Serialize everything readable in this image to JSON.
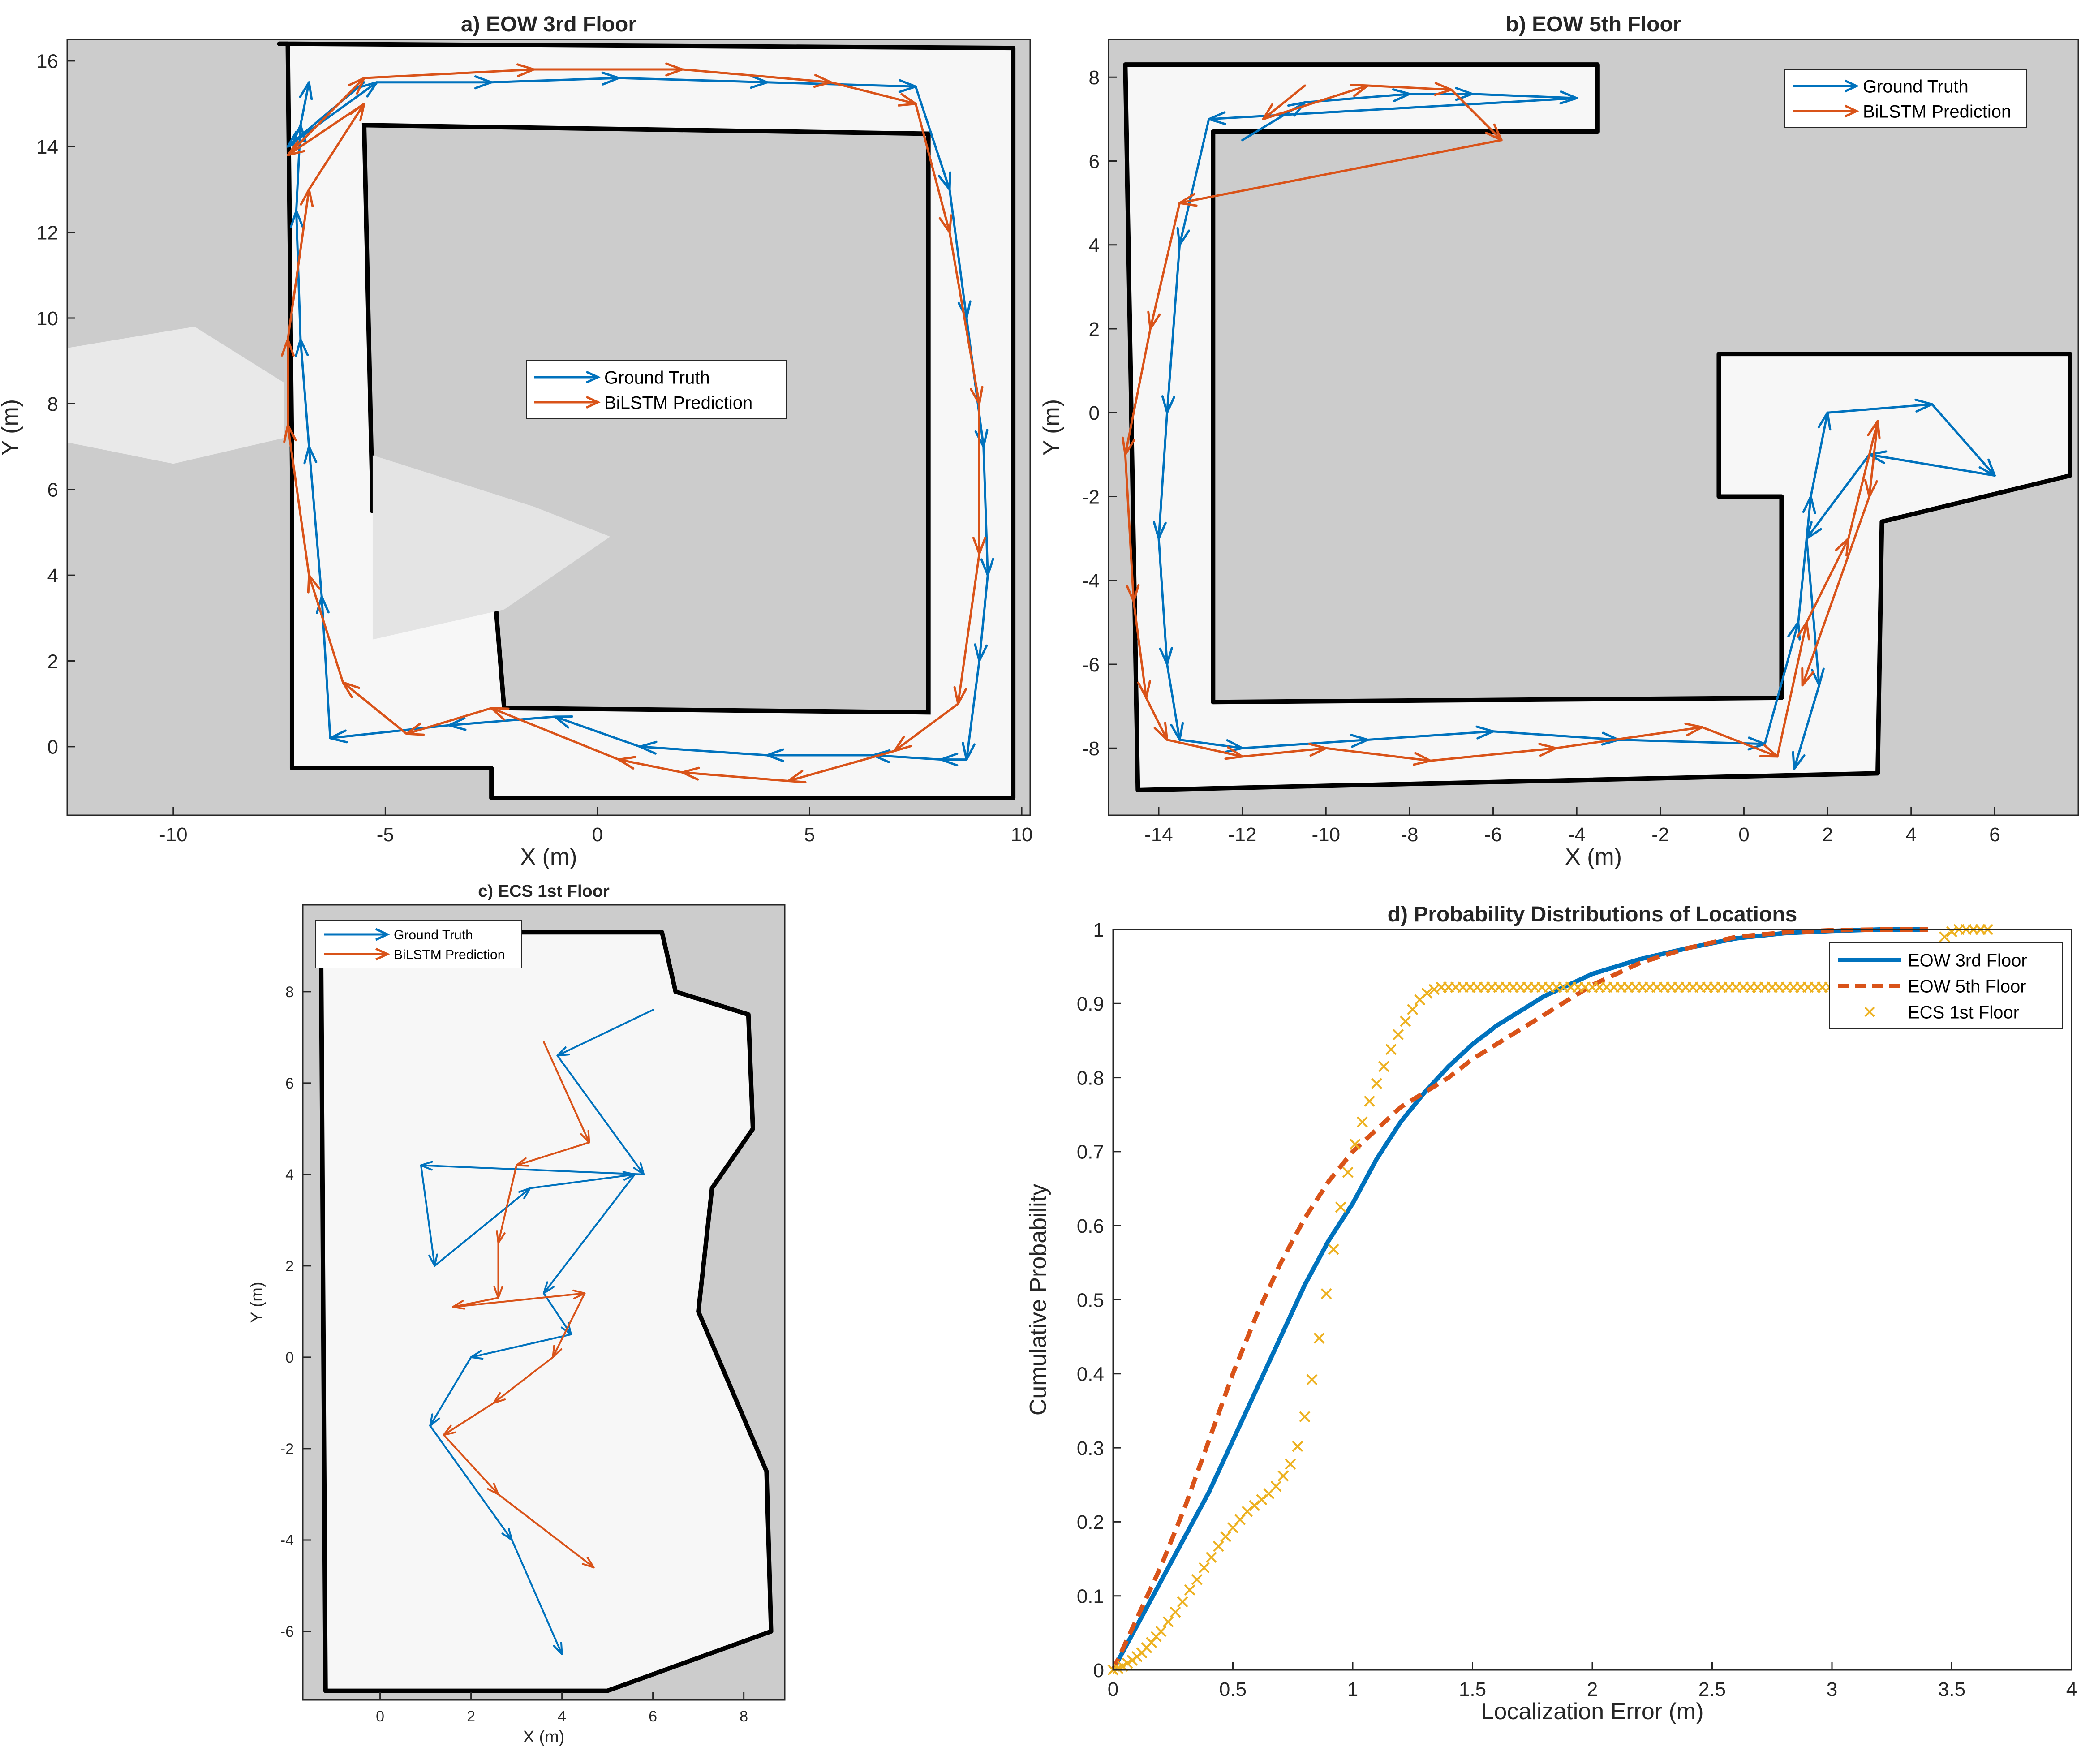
{
  "colors": {
    "ground_truth": "#0072BD",
    "prediction": "#D95319",
    "ecs": "#EDB120",
    "map_unknown": "#CCCCCC",
    "map_free": "#F7F7F7",
    "map_wall": "#000000",
    "axis": "#262626"
  },
  "legend_map": {
    "ground_truth": "Ground Truth",
    "prediction": "BiLSTM Prediction"
  },
  "chart_data": [
    {
      "id": "a",
      "type": "line",
      "title": "a) EOW 3rd Floor",
      "xlabel": "X (m)",
      "ylabel": "Y (m)",
      "xlim": [
        -12.5,
        10.2
      ],
      "ylim": [
        -1.6,
        16.5
      ],
      "xticks": [
        -10,
        -5,
        0,
        5,
        10
      ],
      "yticks": [
        0,
        2,
        4,
        6,
        8,
        10,
        12,
        14,
        16
      ],
      "legend_position": "center",
      "series": [
        {
          "name": "Ground Truth",
          "style": "arrows",
          "x": [
            -5.5,
            -7.3,
            -5.2,
            -2.5,
            0.5,
            4.0,
            7.5,
            8.3,
            8.7,
            9.1,
            9.2,
            9.0,
            8.7,
            8.1,
            6.5,
            4.0,
            1.0,
            -1.0,
            -3.5,
            -6.3,
            -6.5,
            -6.8,
            -7.0,
            -7.1,
            -7.0,
            -6.8
          ],
          "y": [
            15.5,
            14.0,
            15.5,
            15.5,
            15.6,
            15.5,
            15.4,
            13.0,
            10.0,
            7.0,
            4.0,
            2.0,
            -0.3,
            -0.3,
            -0.2,
            -0.2,
            0.0,
            0.7,
            0.5,
            0.2,
            3.5,
            7.0,
            9.5,
            12.5,
            14.5,
            15.5
          ]
        },
        {
          "name": "BiLSTM Prediction",
          "style": "arrows",
          "x": [
            -5.5,
            -7.3,
            -5.5,
            -1.5,
            2.0,
            5.5,
            7.5,
            8.3,
            9.0,
            9.0,
            8.5,
            7.0,
            4.5,
            2.0,
            0.5,
            -2.5,
            -4.5,
            -6.0,
            -6.8,
            -7.3,
            -7.3,
            -6.8,
            -5.5
          ],
          "y": [
            15.0,
            13.8,
            15.6,
            15.8,
            15.8,
            15.5,
            15.0,
            12.0,
            8.0,
            4.5,
            1.0,
            -0.1,
            -0.8,
            -0.6,
            -0.3,
            0.9,
            0.3,
            1.5,
            4.0,
            7.5,
            9.5,
            13.0,
            15.0
          ]
        }
      ]
    },
    {
      "id": "b",
      "type": "line",
      "title": "b) EOW 5th Floor",
      "xlabel": "X (m)",
      "ylabel": "Y (m)",
      "xlim": [
        -15.2,
        8.0
      ],
      "ylim": [
        -9.6,
        8.9
      ],
      "xticks": [
        -14,
        -12,
        -10,
        -8,
        -6,
        -4,
        -2,
        0,
        2,
        4,
        6
      ],
      "yticks": [
        -8,
        -6,
        -4,
        -2,
        0,
        2,
        4,
        6,
        8
      ],
      "legend_position": "top-right",
      "series": [
        {
          "name": "Ground Truth",
          "style": "arrows",
          "x": [
            -12.0,
            -10.5,
            -8.0,
            -6.5,
            -4.0,
            -12.8,
            -13.5,
            -13.8,
            -14.0,
            -13.8,
            -13.5,
            -12.0,
            -9.0,
            -6.0,
            -3.0,
            0.5,
            1.3,
            1.6,
            2.0,
            4.5,
            6.0,
            3.0,
            1.5,
            1.8,
            1.2
          ],
          "y": [
            6.5,
            7.4,
            7.6,
            7.6,
            7.5,
            7.0,
            4.0,
            0.0,
            -3.0,
            -6.0,
            -7.8,
            -8.0,
            -7.8,
            -7.6,
            -7.8,
            -7.9,
            -5.0,
            -2.0,
            0.0,
            0.2,
            -1.5,
            -1.0,
            -3.0,
            -6.5,
            -8.5
          ]
        },
        {
          "name": "BiLSTM Prediction",
          "style": "arrows",
          "x": [
            -10.5,
            -11.5,
            -9.0,
            -7.0,
            -5.8,
            -13.5,
            -14.2,
            -14.8,
            -14.6,
            -14.3,
            -13.8,
            -12.0,
            -10.0,
            -7.5,
            -4.5,
            -1.0,
            0.8,
            1.5,
            2.5,
            3.2,
            3.0,
            1.4
          ],
          "y": [
            7.8,
            7.0,
            7.8,
            7.7,
            6.5,
            5.0,
            2.0,
            -1.0,
            -4.5,
            -6.8,
            -7.8,
            -8.2,
            -8.0,
            -8.3,
            -8.0,
            -7.5,
            -8.2,
            -5.0,
            -3.0,
            -0.2,
            -2.0,
            -6.5
          ]
        }
      ]
    },
    {
      "id": "c",
      "type": "line",
      "title": "c) ECS 1st Floor",
      "xlabel": "X (m)",
      "ylabel": "Y (m)",
      "xlim": [
        -1.7,
        8.9
      ],
      "ylim": [
        -7.5,
        9.9
      ],
      "xticks": [
        0,
        2,
        4,
        6,
        8
      ],
      "yticks": [
        -6,
        -4,
        -2,
        0,
        2,
        4,
        6,
        8
      ],
      "legend_position": "top-left",
      "series": [
        {
          "name": "Ground Truth",
          "style": "arrows",
          "x": [
            6.0,
            3.9,
            5.8,
            0.9,
            1.2,
            3.3,
            5.6,
            3.6,
            4.2,
            2.0,
            1.1,
            2.9,
            4.0
          ],
          "y": [
            7.6,
            6.6,
            4.0,
            4.2,
            2.0,
            3.7,
            4.0,
            1.4,
            0.5,
            0.0,
            -1.5,
            -4.0,
            -6.5
          ]
        },
        {
          "name": "BiLSTM Prediction",
          "style": "arrows",
          "x": [
            3.6,
            4.6,
            3.0,
            2.6,
            2.6,
            1.6,
            4.5,
            3.8,
            2.5,
            1.4,
            2.6,
            4.7
          ],
          "y": [
            6.9,
            4.7,
            4.2,
            2.5,
            1.3,
            1.1,
            1.4,
            0.0,
            -1.0,
            -1.7,
            -3.0,
            -4.6
          ]
        }
      ]
    },
    {
      "id": "d",
      "type": "line",
      "title": "d) Probability Distributions of Locations",
      "xlabel": "Localization Error (m)",
      "ylabel": "Cumulative Probability",
      "xlim": [
        0,
        4
      ],
      "ylim": [
        0,
        1
      ],
      "xticks": [
        0,
        0.5,
        1,
        1.5,
        2,
        2.5,
        3,
        3.5,
        4
      ],
      "yticks": [
        0,
        0.1,
        0.2,
        0.3,
        0.4,
        0.5,
        0.6,
        0.7,
        0.8,
        0.9,
        1
      ],
      "legend_position": "top-right",
      "series": [
        {
          "name": "EOW 3rd Floor",
          "style": "solid",
          "x": [
            0,
            0.1,
            0.2,
            0.3,
            0.4,
            0.5,
            0.6,
            0.7,
            0.8,
            0.9,
            1.0,
            1.1,
            1.2,
            1.3,
            1.4,
            1.5,
            1.6,
            1.7,
            1.8,
            1.9,
            2.0,
            2.2,
            2.4,
            2.6,
            2.8,
            3.0,
            3.2,
            3.4
          ],
          "y": [
            0,
            0.06,
            0.12,
            0.18,
            0.24,
            0.31,
            0.38,
            0.45,
            0.52,
            0.58,
            0.63,
            0.69,
            0.74,
            0.78,
            0.815,
            0.845,
            0.87,
            0.89,
            0.91,
            0.925,
            0.94,
            0.96,
            0.975,
            0.988,
            0.995,
            0.998,
            1.0,
            1.0
          ]
        },
        {
          "name": "EOW 5th Floor",
          "style": "dashed",
          "x": [
            0,
            0.1,
            0.2,
            0.3,
            0.4,
            0.5,
            0.6,
            0.7,
            0.8,
            0.9,
            1.0,
            1.1,
            1.2,
            1.3,
            1.4,
            1.5,
            1.6,
            1.7,
            1.8,
            1.9,
            2.0,
            2.2,
            2.4,
            2.6,
            2.8,
            3.0,
            3.2,
            3.4
          ],
          "y": [
            0,
            0.07,
            0.14,
            0.22,
            0.31,
            0.4,
            0.48,
            0.55,
            0.61,
            0.66,
            0.7,
            0.73,
            0.76,
            0.78,
            0.8,
            0.825,
            0.845,
            0.865,
            0.885,
            0.905,
            0.925,
            0.955,
            0.975,
            0.99,
            0.996,
            0.999,
            1.0,
            1.0
          ]
        },
        {
          "name": "ECS 1st Floor",
          "style": "markers-x",
          "x": [
            0,
            0.02,
            0.04,
            0.06,
            0.08,
            0.1,
            0.12,
            0.14,
            0.16,
            0.18,
            0.2,
            0.23,
            0.26,
            0.29,
            0.32,
            0.35,
            0.38,
            0.41,
            0.44,
            0.47,
            0.5,
            0.53,
            0.56,
            0.59,
            0.62,
            0.65,
            0.68,
            0.71,
            0.74,
            0.77,
            0.8,
            0.83,
            0.86,
            0.89,
            0.92,
            0.95,
            0.98,
            1.01,
            1.04,
            1.07,
            1.1,
            1.13,
            1.16,
            1.19,
            1.22,
            1.25,
            1.28,
            1.31,
            1.34,
            1.37,
            1.4,
            1.43,
            1.46,
            1.49,
            1.52,
            1.55,
            1.58,
            1.61,
            1.64,
            1.67,
            1.7,
            1.73,
            1.76,
            1.79,
            1.82,
            1.85,
            1.88,
            1.91,
            1.94,
            1.97,
            2.0,
            2.03,
            2.06,
            2.09,
            2.12,
            2.15,
            2.18,
            2.21,
            2.24,
            2.27,
            2.3,
            2.33,
            2.36,
            2.39,
            2.42,
            2.45,
            2.48,
            2.51,
            2.54,
            2.57,
            2.6,
            2.63,
            2.66,
            2.69,
            2.72,
            2.75,
            2.78,
            2.81,
            2.84,
            2.87,
            2.9,
            2.93,
            2.96,
            2.99,
            3.02,
            3.05,
            3.08,
            3.11,
            3.14,
            3.17,
            3.2,
            3.23,
            3.26,
            3.29,
            3.32,
            3.35,
            3.38,
            3.41,
            3.44,
            3.47,
            3.5,
            3.53,
            3.56,
            3.59,
            3.62,
            3.65
          ],
          "y": [
            0,
            0.002,
            0.005,
            0.009,
            0.013,
            0.018,
            0.023,
            0.03,
            0.037,
            0.045,
            0.052,
            0.065,
            0.078,
            0.092,
            0.108,
            0.122,
            0.138,
            0.152,
            0.167,
            0.18,
            0.192,
            0.203,
            0.214,
            0.222,
            0.23,
            0.238,
            0.248,
            0.262,
            0.278,
            0.302,
            0.342,
            0.392,
            0.448,
            0.508,
            0.568,
            0.625,
            0.672,
            0.71,
            0.74,
            0.768,
            0.792,
            0.815,
            0.838,
            0.858,
            0.876,
            0.892,
            0.905,
            0.914,
            0.919,
            0.922,
            0.922,
            0.922,
            0.922,
            0.922,
            0.922,
            0.922,
            0.922,
            0.922,
            0.922,
            0.922,
            0.922,
            0.922,
            0.922,
            0.922,
            0.922,
            0.922,
            0.922,
            0.922,
            0.922,
            0.922,
            0.922,
            0.922,
            0.922,
            0.922,
            0.922,
            0.922,
            0.922,
            0.922,
            0.922,
            0.922,
            0.922,
            0.922,
            0.922,
            0.922,
            0.922,
            0.922,
            0.922,
            0.922,
            0.922,
            0.922,
            0.922,
            0.922,
            0.922,
            0.922,
            0.922,
            0.922,
            0.922,
            0.922,
            0.922,
            0.922,
            0.922,
            0.922,
            0.922,
            0.922,
            0.922,
            0.922,
            0.922,
            0.922,
            0.922,
            0.922,
            0.922,
            0.922,
            0.922,
            0.922,
            0.922,
            0.922,
            0.922,
            0.922,
            0.96,
            0.99,
            0.997,
            1.0,
            1.0,
            1.0,
            1.0,
            1.0
          ]
        }
      ]
    }
  ]
}
